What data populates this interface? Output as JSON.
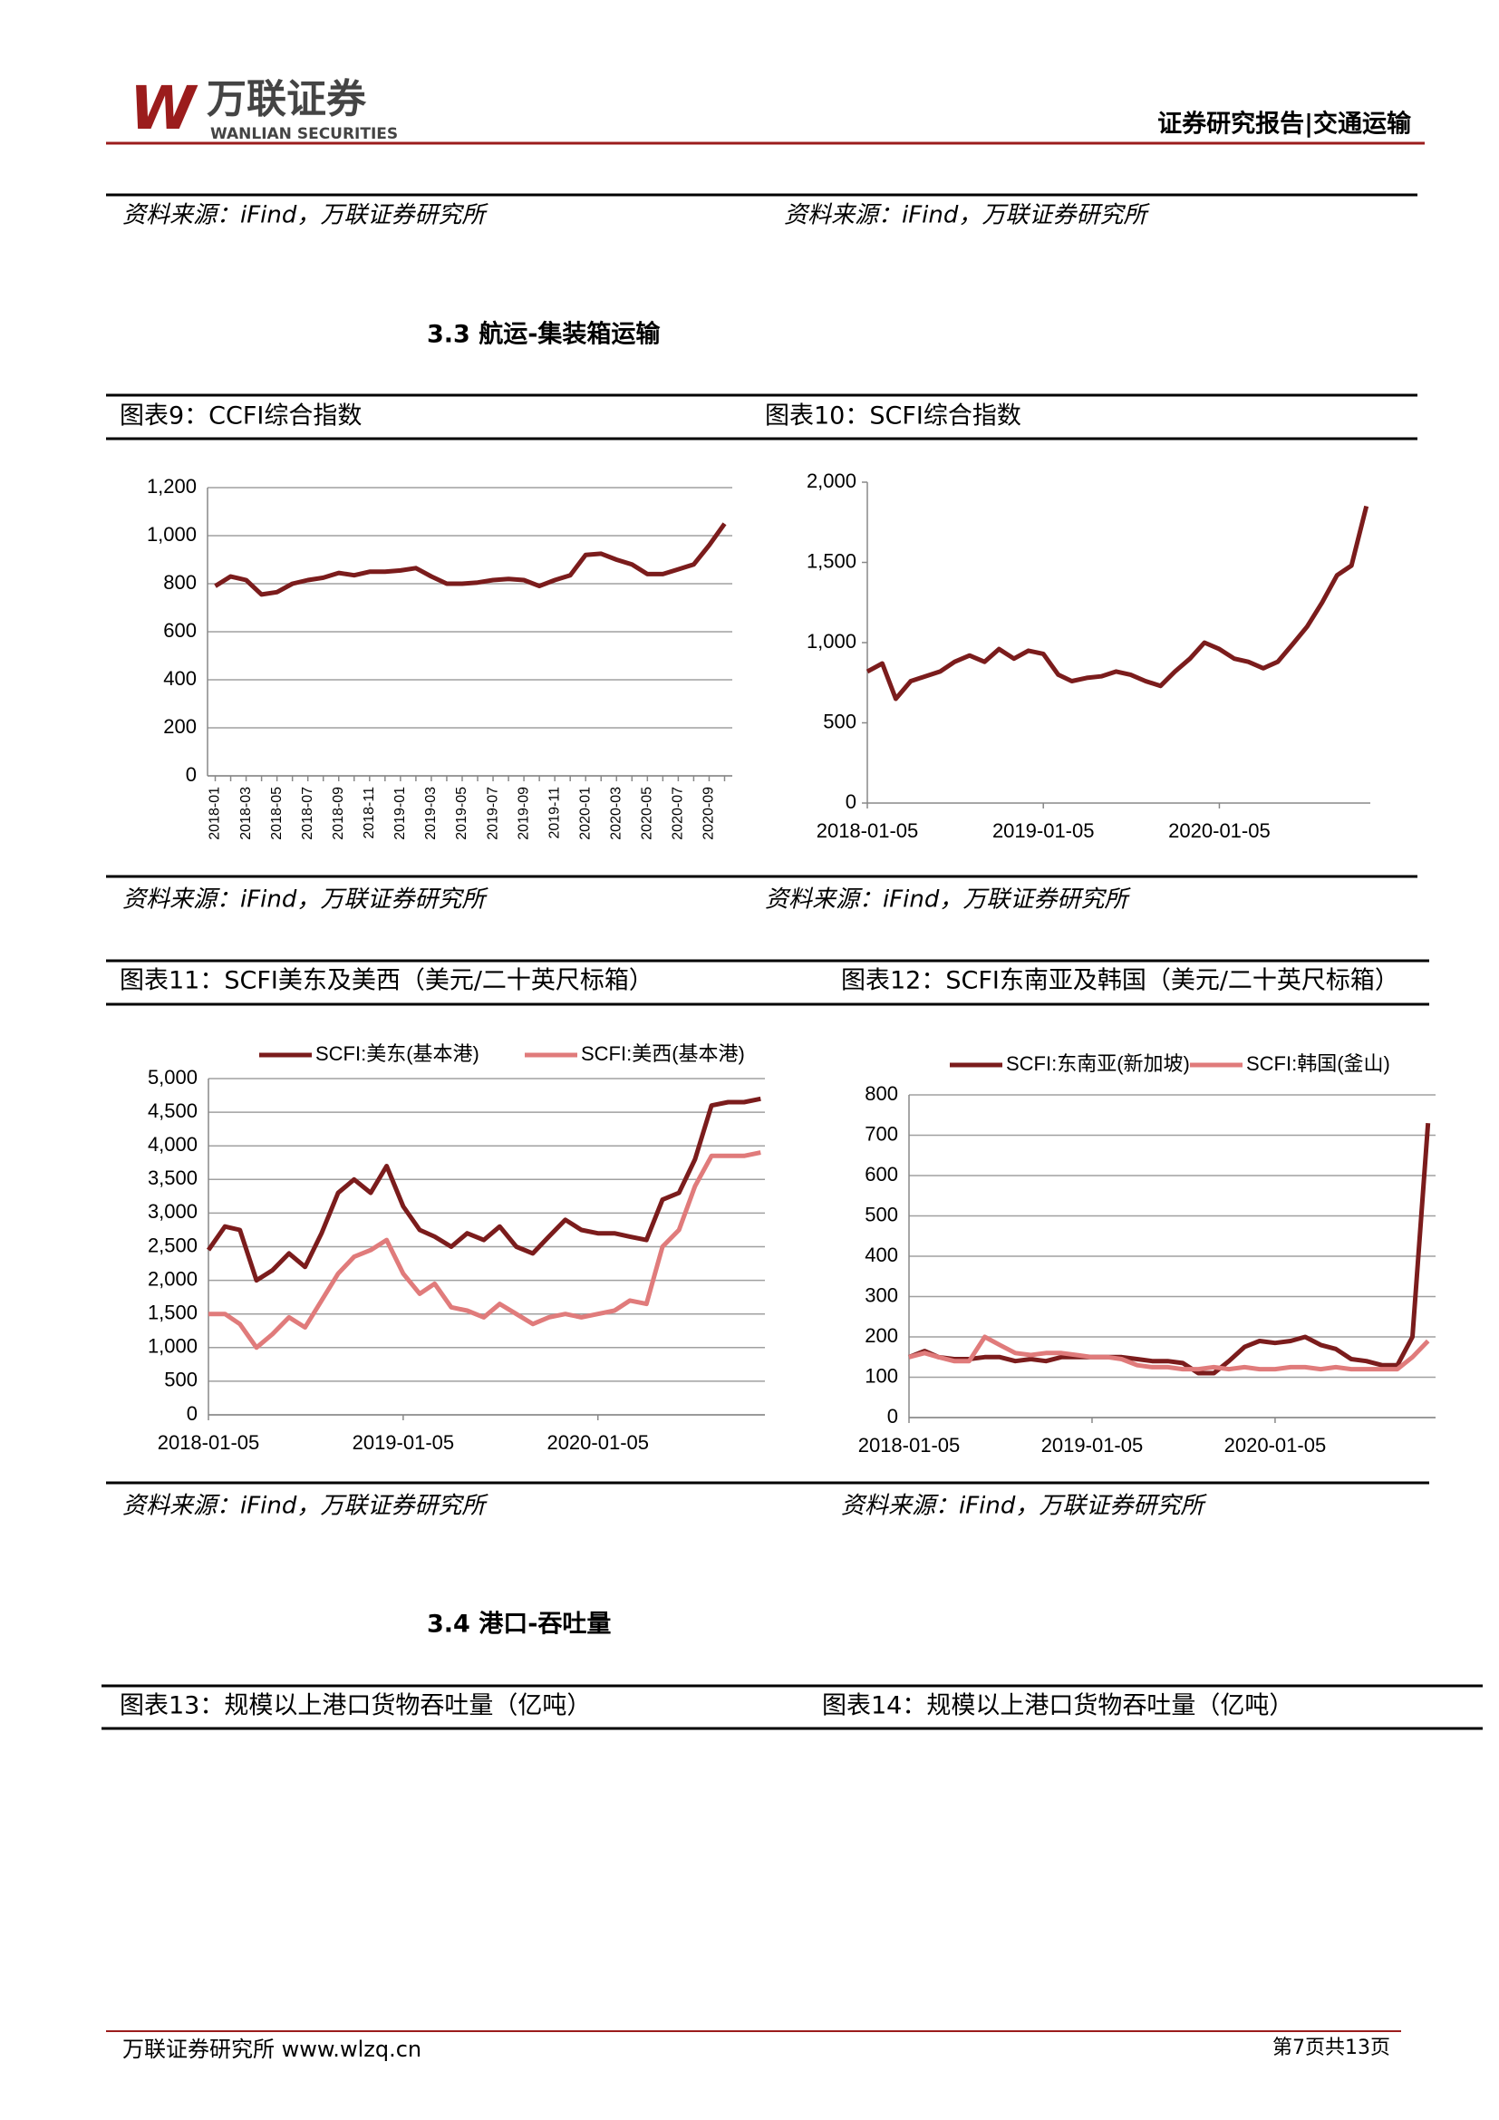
{
  "header": {
    "logo_mark": "W",
    "logo_name": "万联证券",
    "logo_en": "WANLIAN SECURITIES",
    "report_tag": "证券研究报告|交通运输"
  },
  "sources": [
    "资料来源：iFind，万联证券研究所",
    "资料来源：iFind，万联证券研究所",
    "资料来源：iFind，万联证券研究所",
    "资料来源：iFind，万联证券研究所",
    "资料来源：iFind，万联证券研究所",
    "资料来源：iFind，万联证券研究所"
  ],
  "sections": [
    "3.3 航运-集装箱运输",
    "3.4 港口-吞吐量"
  ],
  "figure_titles": [
    "图表9：CCFI综合指数",
    "图表10：SCFI综合指数",
    "图表11：SCFI美东及美西（美元/二十英尺标箱）",
    "图表12：SCFI东南亚及韩国（美元/二十英尺标箱）",
    "图表13：规模以上港口货物吞吐量（亿吨）",
    "图表14：规模以上港口货物吞吐量（亿吨）"
  ],
  "footer": {
    "left": "万联证券研究所 www.wlzq.cn",
    "right": "第7页共13页"
  },
  "chart_data": [
    {
      "type": "line",
      "color": "#7b1c1c",
      "grid": true,
      "categories": [
        "2018-01",
        null,
        "2018-03",
        null,
        "2018-05",
        null,
        "2018-07",
        null,
        "2018-09",
        null,
        "2018-11",
        null,
        "2019-01",
        null,
        "2019-03",
        null,
        "2019-05",
        null,
        "2019-07",
        null,
        "2019-09",
        null,
        "2019-11",
        null,
        "2020-01",
        null,
        "2020-03",
        null,
        "2020-05",
        null,
        "2020-07",
        null,
        "2020-09",
        null
      ],
      "values": [
        790,
        830,
        815,
        755,
        765,
        800,
        815,
        825,
        845,
        835,
        850,
        850,
        855,
        865,
        830,
        800,
        800,
        805,
        815,
        820,
        815,
        790,
        815,
        835,
        920,
        925,
        900,
        880,
        840,
        840,
        860,
        880,
        960,
        1050
      ],
      "ylim": [
        0,
        1200
      ],
      "yticks": [
        0,
        200,
        400,
        600,
        800,
        {
          "value": 1000,
          "label": "1,000"
        },
        {
          "value": 1200,
          "label": "1,200"
        }
      ]
    },
    {
      "type": "line",
      "color": "#7b1c1c",
      "grid": false,
      "x": [
        "2018-01-05",
        "2018-02-05",
        "2018-03-05",
        "2018-04-05",
        "2018-05-05",
        "2018-06-05",
        "2018-07-05",
        "2018-08-05",
        "2018-09-05",
        "2018-10-05",
        "2018-11-05",
        "2018-12-05",
        "2019-01-05",
        "2019-02-05",
        "2019-03-05",
        "2019-04-05",
        "2019-05-05",
        "2019-06-05",
        "2019-07-05",
        "2019-08-05",
        "2019-09-05",
        "2019-10-05",
        "2019-11-05",
        "2019-12-05",
        "2020-01-05",
        "2020-02-05",
        "2020-03-05",
        "2020-04-05",
        "2020-05-05",
        "2020-06-05",
        "2020-07-05",
        "2020-08-05",
        "2020-09-05",
        "2020-10-05",
        "2020-11-05"
      ],
      "values": [
        820,
        870,
        650,
        760,
        790,
        820,
        880,
        920,
        880,
        960,
        900,
        950,
        930,
        800,
        760,
        780,
        790,
        820,
        800,
        760,
        730,
        820,
        900,
        1000,
        960,
        900,
        880,
        840,
        880,
        990,
        1100,
        1250,
        1420,
        1480,
        1850
      ],
      "xlim": [
        "2018-01-05",
        "2020-11-13"
      ],
      "xticks": [
        "2018-01-05",
        "2019-01-05",
        "2020-01-05"
      ],
      "ylim": [
        0,
        2000
      ],
      "yticks": [
        0,
        500,
        {
          "value": 1000,
          "label": "1,000"
        },
        {
          "value": 1500,
          "label": "1,500"
        },
        {
          "value": 2000,
          "label": "2,000"
        }
      ]
    },
    {
      "type": "line",
      "grid": true,
      "x": [
        "2018-01-05",
        "2018-02-05",
        "2018-03-05",
        "2018-04-05",
        "2018-05-05",
        "2018-06-05",
        "2018-07-05",
        "2018-08-05",
        "2018-09-05",
        "2018-10-05",
        "2018-11-05",
        "2018-12-05",
        "2019-01-05",
        "2019-02-05",
        "2019-03-05",
        "2019-04-05",
        "2019-05-05",
        "2019-06-05",
        "2019-07-05",
        "2019-08-05",
        "2019-09-05",
        "2019-10-05",
        "2019-11-05",
        "2019-12-05",
        "2020-01-05",
        "2020-02-05",
        "2020-03-05",
        "2020-04-05",
        "2020-05-05",
        "2020-06-05",
        "2020-07-05",
        "2020-08-05",
        "2020-09-05",
        "2020-10-05",
        "2020-11-05"
      ],
      "series": [
        {
          "name": "SCFI:美东(基本港)",
          "color": "#7b1c1c",
          "values": [
            2450,
            2800,
            2750,
            2000,
            2150,
            2400,
            2200,
            2700,
            3300,
            3500,
            3300,
            3700,
            3100,
            2750,
            2650,
            2500,
            2700,
            2600,
            2800,
            2500,
            2400,
            2650,
            2900,
            2750,
            2700,
            2700,
            2650,
            2600,
            3200,
            3300,
            3800,
            4600,
            4650,
            4650,
            4700
          ]
        },
        {
          "name": "SCFI:美西(基本港)",
          "color": "#e07b7b",
          "values": [
            1500,
            1500,
            1350,
            1000,
            1200,
            1450,
            1300,
            1700,
            2100,
            2350,
            2450,
            2600,
            2100,
            1800,
            1950,
            1600,
            1550,
            1450,
            1650,
            1500,
            1350,
            1450,
            1500,
            1450,
            1500,
            1550,
            1700,
            1650,
            2500,
            2750,
            3400,
            3850,
            3850,
            3850,
            3900
          ]
        }
      ],
      "xlim": [
        "2018-01-05",
        "2020-11-13"
      ],
      "xticks": [
        "2018-01-05",
        "2019-01-05",
        "2020-01-05"
      ],
      "ylim": [
        0,
        5000
      ],
      "yticks": [
        0,
        500,
        {
          "value": 1000,
          "label": "1,000"
        },
        {
          "value": 1500,
          "label": "1,500"
        },
        {
          "value": 2000,
          "label": "2,000"
        },
        {
          "value": 2500,
          "label": "2,500"
        },
        {
          "value": 3000,
          "label": "3,000"
        },
        {
          "value": 3500,
          "label": "3,500"
        },
        {
          "value": 4000,
          "label": "4,000"
        },
        {
          "value": 4500,
          "label": "4,500"
        },
        {
          "value": 5000,
          "label": "5,000"
        }
      ]
    },
    {
      "type": "line",
      "grid": true,
      "x": [
        "2018-01-05",
        "2018-02-05",
        "2018-03-05",
        "2018-04-05",
        "2018-05-05",
        "2018-06-05",
        "2018-07-05",
        "2018-08-05",
        "2018-09-05",
        "2018-10-05",
        "2018-11-05",
        "2018-12-05",
        "2019-01-05",
        "2019-02-05",
        "2019-03-05",
        "2019-04-05",
        "2019-05-05",
        "2019-06-05",
        "2019-07-05",
        "2019-08-05",
        "2019-09-05",
        "2019-10-05",
        "2019-11-05",
        "2019-12-05",
        "2020-01-05",
        "2020-02-05",
        "2020-03-05",
        "2020-04-05",
        "2020-05-05",
        "2020-06-05",
        "2020-07-05",
        "2020-08-05",
        "2020-09-05",
        "2020-10-05",
        "2020-11-05"
      ],
      "series": [
        {
          "name": "SCFI:东南亚(新加坡)",
          "color": "#7b1c1c",
          "values": [
            150,
            165,
            150,
            145,
            145,
            150,
            150,
            140,
            145,
            140,
            150,
            150,
            150,
            150,
            150,
            145,
            140,
            140,
            135,
            110,
            110,
            140,
            175,
            190,
            185,
            190,
            200,
            180,
            170,
            145,
            140,
            130,
            130,
            200,
            730
          ]
        },
        {
          "name": "SCFI:韩国(釜山)",
          "color": "#e07b7b",
          "values": [
            150,
            160,
            150,
            140,
            140,
            200,
            180,
            160,
            155,
            160,
            160,
            155,
            150,
            150,
            145,
            130,
            125,
            125,
            120,
            120,
            125,
            120,
            125,
            120,
            120,
            125,
            125,
            120,
            125,
            120,
            120,
            120,
            120,
            150,
            190
          ]
        }
      ],
      "xlim": [
        "2018-01-05",
        "2020-11-20"
      ],
      "xticks": [
        "2018-01-05",
        "2019-01-05",
        "2020-01-05"
      ],
      "ylim": [
        0,
        800
      ],
      "yticks": [
        0,
        100,
        200,
        300,
        400,
        500,
        600,
        700,
        800
      ]
    }
  ]
}
